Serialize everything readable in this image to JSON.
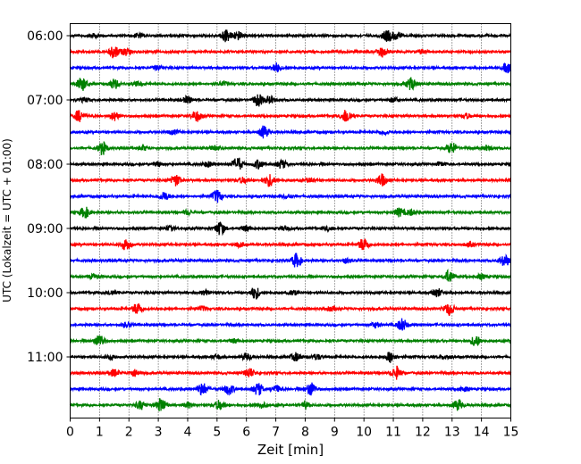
{
  "chart_data": {
    "type": "line",
    "title": "",
    "xlabel": "Zeit  [min]",
    "ylabel": "UTC (Lokalzeit = UTC + 01:00)",
    "xlim": [
      0,
      15
    ],
    "x_ticks": [
      "0",
      "1",
      "2",
      "3",
      "4",
      "5",
      "6",
      "7",
      "8",
      "9",
      "10",
      "11",
      "12",
      "13",
      "14",
      "15"
    ],
    "y_ticks": [
      "06:00",
      "07:00",
      "08:00",
      "09:00",
      "10:00",
      "11:00"
    ],
    "grid_x": true,
    "grid_y": false,
    "trace_colors": [
      "#000000",
      "#ff0000",
      "#0000ff",
      "#008000"
    ],
    "traces_per_hour": 4,
    "traces": [
      {
        "start": "06:00",
        "events": [
          [
            0.8,
            0.25
          ],
          [
            2.3,
            0.3
          ],
          [
            5.3,
            0.9
          ],
          [
            5.7,
            0.6
          ],
          [
            10.8,
            0.8
          ],
          [
            11.1,
            0.5
          ]
        ]
      },
      {
        "start": "06:15",
        "events": [
          [
            1.5,
            0.9
          ],
          [
            1.9,
            0.5
          ],
          [
            10.6,
            0.7
          ],
          [
            12.0,
            0.3
          ]
        ]
      },
      {
        "start": "06:30",
        "events": [
          [
            3.0,
            0.3
          ],
          [
            7.0,
            0.7
          ],
          [
            14.9,
            0.8
          ]
        ]
      },
      {
        "start": "06:45",
        "events": [
          [
            0.4,
            1.0
          ],
          [
            1.5,
            0.7
          ],
          [
            2.3,
            0.3
          ],
          [
            5.2,
            0.3
          ],
          [
            11.6,
            0.9
          ]
        ]
      },
      {
        "start": "07:00",
        "events": [
          [
            0.5,
            0.3
          ],
          [
            4.0,
            0.5
          ],
          [
            6.4,
            0.9
          ],
          [
            6.8,
            0.5
          ],
          [
            11.0,
            0.3
          ]
        ]
      },
      {
        "start": "07:15",
        "events": [
          [
            0.3,
            0.8
          ],
          [
            1.5,
            0.6
          ],
          [
            4.3,
            0.8
          ],
          [
            9.4,
            1.0
          ],
          [
            13.5,
            0.3
          ]
        ]
      },
      {
        "start": "07:30",
        "events": [
          [
            3.5,
            0.3
          ],
          [
            6.6,
            0.9
          ],
          [
            10.7,
            0.3
          ]
        ]
      },
      {
        "start": "07:45",
        "events": [
          [
            1.1,
            0.9
          ],
          [
            2.5,
            0.3
          ],
          [
            4.9,
            0.3
          ],
          [
            13.0,
            0.8
          ],
          [
            14.2,
            0.3
          ]
        ]
      },
      {
        "start": "08:00",
        "events": [
          [
            3.0,
            0.3
          ],
          [
            4.7,
            0.4
          ],
          [
            5.7,
            1.0
          ],
          [
            6.4,
            0.6
          ],
          [
            7.2,
            0.6
          ],
          [
            12.6,
            0.3
          ]
        ]
      },
      {
        "start": "08:15",
        "events": [
          [
            3.6,
            0.8
          ],
          [
            5.9,
            0.4
          ],
          [
            6.8,
            0.9
          ],
          [
            8.2,
            0.3
          ],
          [
            10.6,
            0.9
          ]
        ]
      },
      {
        "start": "08:30",
        "events": [
          [
            3.2,
            0.6
          ],
          [
            5.0,
            0.9
          ],
          [
            7.4,
            0.3
          ]
        ]
      },
      {
        "start": "08:45",
        "events": [
          [
            0.5,
            0.8
          ],
          [
            4.0,
            0.3
          ],
          [
            11.2,
            0.6
          ],
          [
            11.6,
            0.4
          ]
        ]
      },
      {
        "start": "09:00",
        "events": [
          [
            3.4,
            0.3
          ],
          [
            5.1,
            1.0
          ],
          [
            6.0,
            0.4
          ],
          [
            7.3,
            0.3
          ],
          [
            8.8,
            0.3
          ]
        ]
      },
      {
        "start": "09:15",
        "events": [
          [
            1.9,
            0.8
          ],
          [
            5.8,
            0.3
          ],
          [
            10.0,
            1.0
          ],
          [
            13.6,
            0.3
          ]
        ]
      },
      {
        "start": "09:30",
        "events": [
          [
            7.7,
            1.0
          ],
          [
            9.4,
            0.3
          ],
          [
            14.8,
            0.8
          ]
        ]
      },
      {
        "start": "09:45",
        "events": [
          [
            0.8,
            0.3
          ],
          [
            12.9,
            0.9
          ],
          [
            14.0,
            0.3
          ]
        ]
      },
      {
        "start": "10:00",
        "events": [
          [
            1.4,
            0.3
          ],
          [
            4.6,
            0.3
          ],
          [
            6.3,
            0.9
          ],
          [
            7.6,
            0.3
          ],
          [
            12.5,
            0.6
          ]
        ]
      },
      {
        "start": "10:15",
        "events": [
          [
            2.3,
            0.9
          ],
          [
            4.5,
            0.3
          ],
          [
            8.9,
            0.3
          ],
          [
            12.9,
            0.9
          ]
        ]
      },
      {
        "start": "10:30",
        "events": [
          [
            1.9,
            0.3
          ],
          [
            10.4,
            0.4
          ],
          [
            11.3,
            0.9
          ]
        ]
      },
      {
        "start": "10:45",
        "events": [
          [
            1.0,
            0.9
          ],
          [
            5.6,
            0.3
          ],
          [
            13.8,
            0.8
          ]
        ]
      },
      {
        "start": "11:00",
        "events": [
          [
            1.4,
            0.3
          ],
          [
            5.0,
            0.3
          ],
          [
            6.0,
            0.5
          ],
          [
            7.7,
            0.6
          ],
          [
            8.4,
            0.4
          ],
          [
            10.9,
            0.8
          ],
          [
            12.8,
            0.3
          ]
        ]
      },
      {
        "start": "11:15",
        "events": [
          [
            1.5,
            0.5
          ],
          [
            2.2,
            0.5
          ],
          [
            6.1,
            0.7
          ],
          [
            11.1,
            0.9
          ]
        ]
      },
      {
        "start": "11:30",
        "events": [
          [
            4.5,
            0.9
          ],
          [
            5.4,
            0.8
          ],
          [
            6.4,
            0.9
          ],
          [
            7.0,
            0.5
          ],
          [
            8.2,
            1.0
          ],
          [
            13.4,
            0.3
          ]
        ]
      },
      {
        "start": "11:45",
        "events": [
          [
            2.4,
            0.6
          ],
          [
            3.1,
            1.0
          ],
          [
            4.0,
            0.4
          ],
          [
            5.1,
            0.7
          ],
          [
            6.5,
            0.4
          ],
          [
            8.0,
            0.4
          ],
          [
            13.2,
            0.8
          ]
        ]
      }
    ]
  }
}
